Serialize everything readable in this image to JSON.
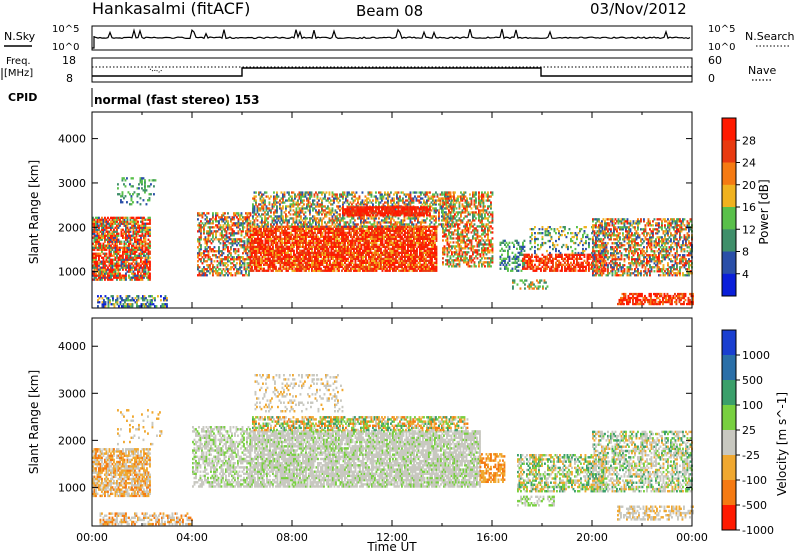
{
  "header": {
    "station": "Hankasalmi (fitACF)",
    "beam": "Beam 08",
    "date": "03/Nov/2012"
  },
  "top_panels": {
    "nsky_label": "N.Sky",
    "nsearch_label": "N.Search",
    "scale_hi": "10^5",
    "scale_lo": "10^0",
    "freq_label_1": "Freq.",
    "freq_label_2": "[MHz]",
    "freq_ticks": [
      "18",
      "8"
    ],
    "nave_label": "Nave",
    "nave_ticks": [
      "60",
      "0"
    ],
    "cpid_label": "CPID",
    "cpid_text": "normal (fast stereo) 153"
  },
  "chart_data": [
    {
      "type": "heatmap",
      "name": "power",
      "ylabel": "Slant Range [km]",
      "yticks": [
        1000,
        2000,
        3000,
        4000
      ],
      "ylim": [
        180,
        4600
      ],
      "xlim_hours": [
        0,
        24
      ],
      "colorbar_label": "Power [dB]",
      "colorbar_ticks": [
        "4",
        "8",
        "12",
        "16",
        "20",
        "24",
        "28"
      ],
      "colors": [
        "#0a1fd9",
        "#2a4fa8",
        "#3f8f6a",
        "#59c04a",
        "#f0b21f",
        "#f57a12",
        "#e83a10",
        "#ff1a00"
      ]
    },
    {
      "type": "heatmap",
      "name": "velocity",
      "ylabel": "Slant Range [km]",
      "yticks": [
        1000,
        2000,
        3000,
        4000
      ],
      "ylim": [
        180,
        4600
      ],
      "xlim_hours": [
        0,
        24
      ],
      "xlabel": "Time UT",
      "xticks": [
        "00:00",
        "04:00",
        "08:00",
        "12:00",
        "16:00",
        "20:00",
        "00:00"
      ],
      "colorbar_label": "Velocity [m s^-1]",
      "colorbar_ticks": [
        "1000",
        "500",
        "100",
        "25",
        "-25",
        "-100",
        "-500",
        "-1000"
      ],
      "colors": [
        "#1a3fd0",
        "#2a6fa8",
        "#3a9f6a",
        "#78d040",
        "#c8c8c0",
        "#f0a830",
        "#f57a12",
        "#ff1a00"
      ]
    }
  ]
}
